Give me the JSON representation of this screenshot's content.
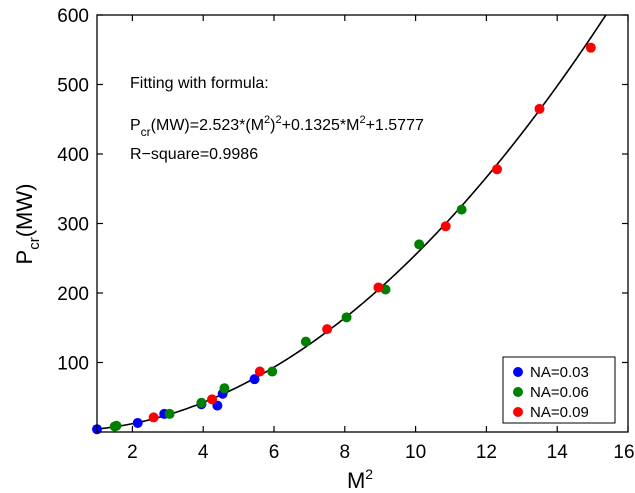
{
  "chart_data": {
    "type": "scatter",
    "xlabel": {
      "base": "M",
      "sup": "2"
    },
    "ylabel": {
      "base": "P",
      "sub": "cr",
      "rest": "(MW)"
    },
    "xlim": [
      1,
      16
    ],
    "ylim": [
      0,
      600
    ],
    "xticks": [
      2,
      4,
      6,
      8,
      10,
      12,
      14,
      16
    ],
    "yticks": [
      100,
      200,
      300,
      400,
      500,
      600
    ],
    "annotation": {
      "line1": "Fitting with formula:",
      "line2": {
        "p": "P",
        "p_sub": "cr",
        "a": "(MW)=2.523*(M",
        "sup1": "2",
        "b": ")",
        "sup2": "2",
        "c": "+0.1325*M",
        "sup3": "2",
        "d": "+1.5777"
      },
      "line3": "R−square=0.9986"
    },
    "fit": {
      "a": 2.523,
      "b": 0.1325,
      "c": 1.5777
    },
    "legend_position": "bottom-right",
    "series": [
      {
        "name": "NA=0.03",
        "color": "#0000ff",
        "points": [
          [
            1.0,
            4
          ],
          [
            2.15,
            13
          ],
          [
            2.9,
            26
          ],
          [
            3.95,
            40
          ],
          [
            4.4,
            38
          ],
          [
            4.55,
            55
          ],
          [
            5.45,
            76
          ]
        ]
      },
      {
        "name": "NA=0.06",
        "color": "#008000",
        "points": [
          [
            1.5,
            8
          ],
          [
            1.55,
            9
          ],
          [
            3.05,
            26
          ],
          [
            3.95,
            42
          ],
          [
            4.6,
            63
          ],
          [
            5.95,
            87
          ],
          [
            6.9,
            130
          ],
          [
            8.05,
            165
          ],
          [
            9.15,
            205
          ],
          [
            10.1,
            270
          ],
          [
            11.3,
            320
          ]
        ]
      },
      {
        "name": "NA=0.09",
        "color": "#ff0000",
        "points": [
          [
            2.6,
            21
          ],
          [
            4.25,
            47
          ],
          [
            5.6,
            87
          ],
          [
            7.5,
            148
          ],
          [
            8.95,
            208
          ],
          [
            10.85,
            296
          ],
          [
            12.3,
            378
          ],
          [
            13.5,
            465
          ],
          [
            14.95,
            553
          ]
        ]
      }
    ]
  }
}
